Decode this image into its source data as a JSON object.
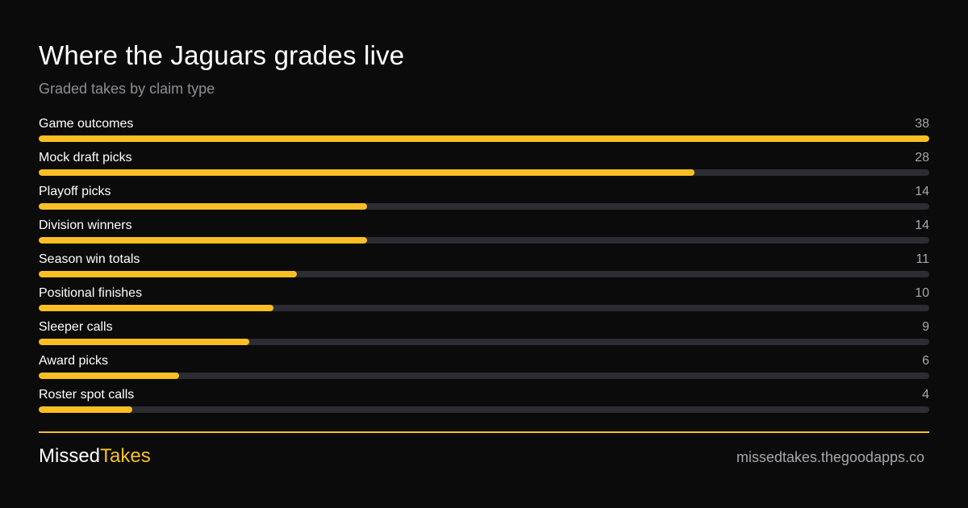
{
  "chart_data": {
    "type": "bar",
    "orientation": "horizontal",
    "title": "Where the Jaguars grades live",
    "subtitle": "Graded takes by claim type",
    "categories": [
      "Game outcomes",
      "Mock draft picks",
      "Playoff picks",
      "Division winners",
      "Season win totals",
      "Positional finishes",
      "Sleeper calls",
      "Award picks",
      "Roster spot calls"
    ],
    "values": [
      38,
      28,
      14,
      14,
      11,
      10,
      9,
      6,
      4
    ],
    "xlim": [
      0,
      38
    ],
    "grid": false,
    "legend": "none"
  },
  "footer": {
    "brand_part1": "Missed",
    "brand_part2": "Takes",
    "website": "missedtakes.thegoodapps.co"
  },
  "colors": {
    "background": "#0b0b0b",
    "accent": "#fbbf24",
    "track": "#2c2c33",
    "muted_text": "#8e8e95"
  }
}
